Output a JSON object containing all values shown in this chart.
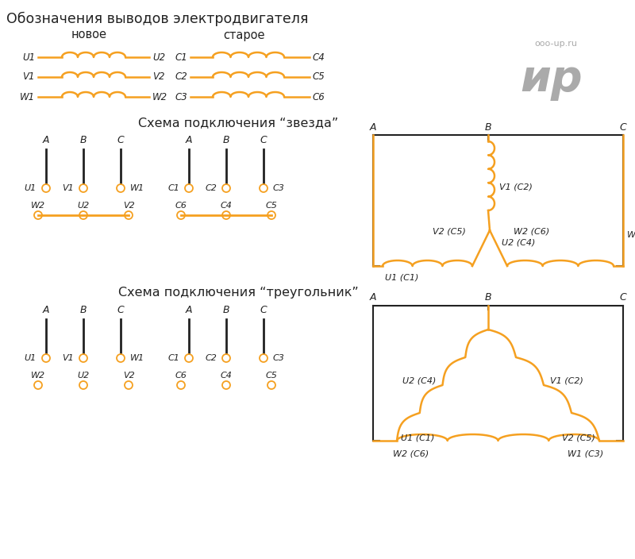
{
  "title": "Обозначения выводов электродвигателя",
  "orange": "#F5A020",
  "black": "#222222",
  "gray": "#aaaaaa",
  "bg": "#ffffff",
  "star_title": "Схема подключения “звезда”",
  "tri_title": "Схема подключения “треугольник”",
  "watermark1": "ooo-up.ru",
  "watermark2": "ир"
}
